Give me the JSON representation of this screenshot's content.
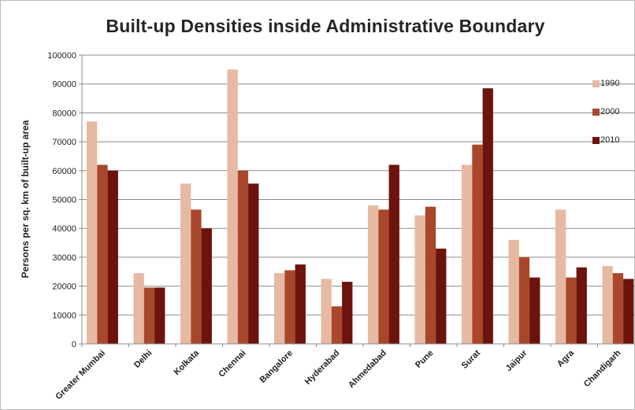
{
  "chart_data": {
    "type": "bar",
    "title": "Built-up Densities inside Administrative Boundary",
    "ylabel": "Persons per sq. km of built-up area",
    "xlabel": "",
    "ylim": [
      0,
      100000
    ],
    "yticks": [
      0,
      10000,
      20000,
      30000,
      40000,
      50000,
      60000,
      70000,
      80000,
      90000,
      100000
    ],
    "grid": true,
    "legend_position": "right",
    "categories": [
      "Greater Mumbai",
      "Delhi",
      "Kolkata",
      "Chennai",
      "Bangalore",
      "Hyderabad",
      "Ahmedabad",
      "Pune",
      "Surat",
      "Jaipur",
      "Agra",
      "Chandigarh"
    ],
    "series": [
      {
        "name": "1990",
        "color": "#e6b9a3",
        "values": [
          77000,
          24500,
          55500,
          95000,
          24500,
          22500,
          48000,
          44500,
          62000,
          36000,
          46500,
          27000
        ]
      },
      {
        "name": "2000",
        "color": "#a9472c",
        "values": [
          62000,
          19500,
          46500,
          60000,
          25500,
          13000,
          46500,
          47500,
          69000,
          30000,
          23000,
          24500
        ]
      },
      {
        "name": "2010",
        "color": "#6b130c",
        "values": [
          60000,
          19500,
          40000,
          55500,
          27500,
          21500,
          62000,
          33000,
          88500,
          23000,
          26500,
          22500
        ]
      }
    ]
  }
}
